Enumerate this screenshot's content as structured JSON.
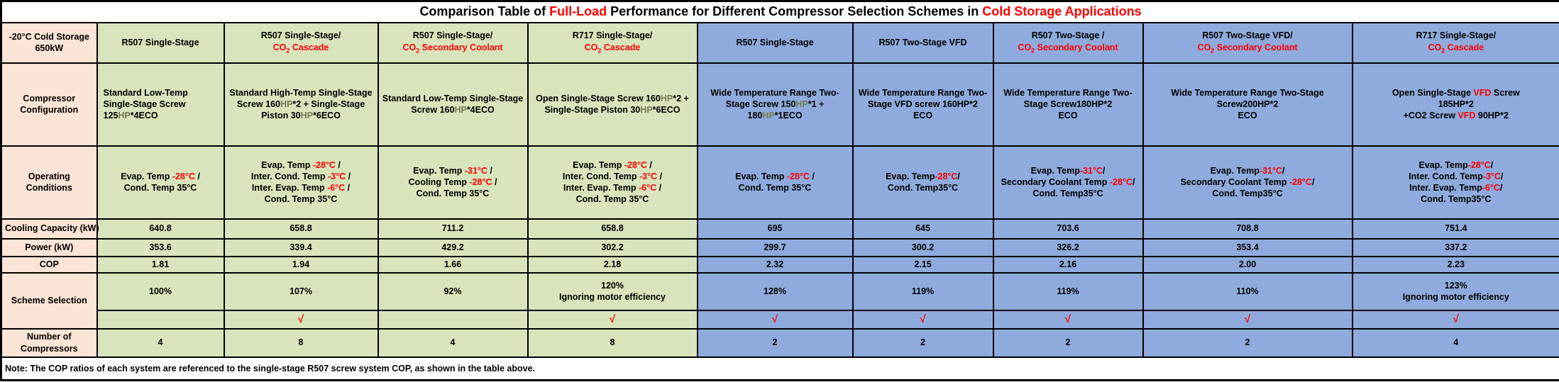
{
  "colors": {
    "accent_red": "#ff0000",
    "hp_olive": "#717c50",
    "label_column_bg": "#fce4d6",
    "green_scheme_bg": "#d8e4bc",
    "blue_scheme_bg": "#8faadc",
    "border": "#000000"
  },
  "title": {
    "segments": [
      {
        "t": "Comparison Table of "
      },
      {
        "t": "Full-Load",
        "c": "red"
      },
      {
        "t": " Performance for Different Compressor Selection Schemes in "
      },
      {
        "t": "Cold Storage Applications",
        "c": "red"
      }
    ]
  },
  "corner": {
    "label": "-20°C Cold Storage\n650kW"
  },
  "row_labels": {
    "config": "Compressor\nConfiguration",
    "operating": "Operating\nConditions",
    "cooling": "Cooling Capacity (kW)",
    "power": "Power (kW)",
    "cop": "COP",
    "scheme": "Scheme Selection",
    "compressors": "Number of\nCompressors"
  },
  "note": "Note: The COP ratios of each system are referenced to the single-stage R507 screw system COP, as shown in the table above.",
  "columns": [
    {
      "theme": "green",
      "header": [
        {
          "t": "R507 Single-Stage"
        }
      ],
      "config": [
        {
          "t": "Standard Low-Temp\nSingle-Stage Screw\n125"
        },
        {
          "t": "HP",
          "c": "olive"
        },
        {
          "t": "*4ECO"
        }
      ],
      "operating": [
        {
          "t": "Evap. Temp "
        },
        {
          "t": "-28°C",
          "c": "red"
        },
        {
          "t": " /\nCond. Temp 35°C"
        }
      ],
      "cooling": "640.8",
      "power": "353.6",
      "cop": "1.81",
      "scheme_pct": "100%",
      "check": "",
      "compressors": "4"
    },
    {
      "theme": "green",
      "header": [
        {
          "t": "R507 Single-Stage/\n"
        },
        {
          "t": "CO",
          "c": "red"
        },
        {
          "t": "2",
          "c": "red",
          "sub": true
        },
        {
          "t": " Cascade",
          "c": "red"
        }
      ],
      "config": [
        {
          "t": "Standard High-Temp Single-Stage\nScrew 160"
        },
        {
          "t": "HP",
          "c": "olive"
        },
        {
          "t": "*2 + Single-Stage\nPiston 30"
        },
        {
          "t": "HP",
          "c": "olive"
        },
        {
          "t": "*6ECO"
        }
      ],
      "operating": [
        {
          "t": "Evap. Temp "
        },
        {
          "t": "-28°C",
          "c": "red"
        },
        {
          "t": " /\nInter. Cond. Temp "
        },
        {
          "t": "-3°C",
          "c": "red"
        },
        {
          "t": " /\nInter. Evap. Temp "
        },
        {
          "t": "-6°C",
          "c": "red"
        },
        {
          "t": " /\nCond. Temp 35°C"
        }
      ],
      "cooling": "658.8",
      "power": "339.4",
      "cop": "1.94",
      "scheme_pct": "107%",
      "check": "√",
      "compressors": "8"
    },
    {
      "theme": "green",
      "header": [
        {
          "t": "R507 Single-Stage/\n"
        },
        {
          "t": "CO",
          "c": "red"
        },
        {
          "t": "2",
          "c": "red",
          "sub": true
        },
        {
          "t": " Secondary Coolant",
          "c": "red"
        }
      ],
      "config": [
        {
          "t": "Standard Low-Temp Single-Stage\nScrew 160"
        },
        {
          "t": "HP",
          "c": "olive"
        },
        {
          "t": "*4ECO"
        }
      ],
      "operating": [
        {
          "t": "Evap. Temp "
        },
        {
          "t": "-31°C",
          "c": "red"
        },
        {
          "t": " /\nCooling Temp "
        },
        {
          "t": "-28°C",
          "c": "red"
        },
        {
          "t": " /\nCond. Temp 35°C"
        }
      ],
      "cooling": "711.2",
      "power": "429.2",
      "cop": "1.66",
      "scheme_pct": "92%",
      "check": "",
      "compressors": "4"
    },
    {
      "theme": "green",
      "header": [
        {
          "t": "R717 Single-Stage/\n"
        },
        {
          "t": "CO",
          "c": "red"
        },
        {
          "t": "2",
          "c": "red",
          "sub": true
        },
        {
          "t": " Cascade",
          "c": "red"
        }
      ],
      "config": [
        {
          "t": "Open Single-Stage Screw 160"
        },
        {
          "t": "HP",
          "c": "olive"
        },
        {
          "t": "*2 +\nSingle-Stage Piston 30"
        },
        {
          "t": "HP",
          "c": "olive"
        },
        {
          "t": "*6ECO"
        }
      ],
      "operating": [
        {
          "t": "Evap. Temp "
        },
        {
          "t": "-28°C",
          "c": "red"
        },
        {
          "t": " /\nInter. Cond. Temp "
        },
        {
          "t": "-3°C",
          "c": "red"
        },
        {
          "t": " /\nInter. Evap. Temp "
        },
        {
          "t": "-6°C",
          "c": "red"
        },
        {
          "t": " /\nCond. Temp 35°C"
        }
      ],
      "cooling": "658.8",
      "power": "302.2",
      "cop": "2.18",
      "scheme_pct": "120%\nIgnoring motor efficiency",
      "check": "√",
      "compressors": "8"
    },
    {
      "theme": "blue",
      "header": [
        {
          "t": "R507 Single-Stage"
        }
      ],
      "config": [
        {
          "t": "Wide Temperature Range Two-\nStage Screw 150"
        },
        {
          "t": "HP",
          "c": "olive"
        },
        {
          "t": "*1 +\n180"
        },
        {
          "t": "HP",
          "c": "olive"
        },
        {
          "t": "*1ECO"
        }
      ],
      "operating": [
        {
          "t": "Evap. Temp "
        },
        {
          "t": "-28°C",
          "c": "red"
        },
        {
          "t": " /\nCond. Temp 35°C"
        }
      ],
      "cooling": "695",
      "power": "299.7",
      "cop": "2.32",
      "scheme_pct": "128%",
      "check": "√",
      "compressors": "2"
    },
    {
      "theme": "blue",
      "header": [
        {
          "t": "R507 Two-Stage VFD"
        }
      ],
      "config": [
        {
          "t": "Wide Temperature Range Two-\nStage VFD screw 160HP*2\nECO"
        }
      ],
      "operating": [
        {
          "t": "Evap. Temp"
        },
        {
          "t": "-28°C",
          "c": "red"
        },
        {
          "t": "/\nCond. Temp35°C"
        }
      ],
      "cooling": "645",
      "power": "300.2",
      "cop": "2.15",
      "scheme_pct": "119%",
      "check": "√",
      "compressors": "2"
    },
    {
      "theme": "blue",
      "header": [
        {
          "t": "R507 Two-Stage /\n"
        },
        {
          "t": "CO",
          "c": "red"
        },
        {
          "t": "2",
          "c": "red",
          "sub": true
        },
        {
          "t": " Secondary Coolant",
          "c": "red"
        }
      ],
      "config": [
        {
          "t": "Wide Temperature Range Two-\nStage Screw180HP*2\nECO"
        }
      ],
      "operating": [
        {
          "t": "Evap. Temp"
        },
        {
          "t": "-31°C",
          "c": "red"
        },
        {
          "t": "/\nSecondary Coolant Temp "
        },
        {
          "t": "-28°C",
          "c": "red"
        },
        {
          "t": "/\nCond. Temp35°C"
        }
      ],
      "cooling": "703.6",
      "power": "326.2",
      "cop": "2.16",
      "scheme_pct": "119%",
      "check": "√",
      "compressors": "2"
    },
    {
      "theme": "blue",
      "header": [
        {
          "t": "R507 Two-Stage VFD/\n"
        },
        {
          "t": "CO",
          "c": "red"
        },
        {
          "t": "2",
          "c": "red",
          "sub": true
        },
        {
          "t": " Secondary Coolant",
          "c": "red"
        }
      ],
      "config": [
        {
          "t": "Wide Temperature Range Two-Stage\nScrew200HP*2\nECO"
        }
      ],
      "operating": [
        {
          "t": "Evap. Temp"
        },
        {
          "t": "-31°C",
          "c": "red"
        },
        {
          "t": "/\nSecondary Coolant Temp "
        },
        {
          "t": "-28°C",
          "c": "red"
        },
        {
          "t": "/\nCond. Temp35°C"
        }
      ],
      "cooling": "708.8",
      "power": "353.4",
      "cop": "2.00",
      "scheme_pct": "110%",
      "check": "√",
      "compressors": "2"
    },
    {
      "theme": "blue",
      "header": [
        {
          "t": "R717 Single-Stage/\n"
        },
        {
          "t": "CO",
          "c": "red"
        },
        {
          "t": "2",
          "c": "red",
          "sub": true
        },
        {
          "t": " Cascade",
          "c": "red"
        }
      ],
      "config": [
        {
          "t": "Open Single-Stage "
        },
        {
          "t": "VFD",
          "c": "red"
        },
        {
          "t": " Screw\n185HP*2\n+CO2 Screw "
        },
        {
          "t": "VFD",
          "c": "red"
        },
        {
          "t": " 90HP*2"
        }
      ],
      "operating": [
        {
          "t": "Evap. Temp"
        },
        {
          "t": "-28°C",
          "c": "red"
        },
        {
          "t": "/\nInter. Cond. Temp"
        },
        {
          "t": "-3°C",
          "c": "red"
        },
        {
          "t": "/\nInter. Evap. Temp"
        },
        {
          "t": "-6°C",
          "c": "red"
        },
        {
          "t": "/\nCond. Temp35°C"
        }
      ],
      "cooling": "751.4",
      "power": "337.2",
      "cop": "2.23",
      "scheme_pct": "123%\nIgnoring motor efficiency",
      "check": "√",
      "compressors": "4"
    }
  ]
}
